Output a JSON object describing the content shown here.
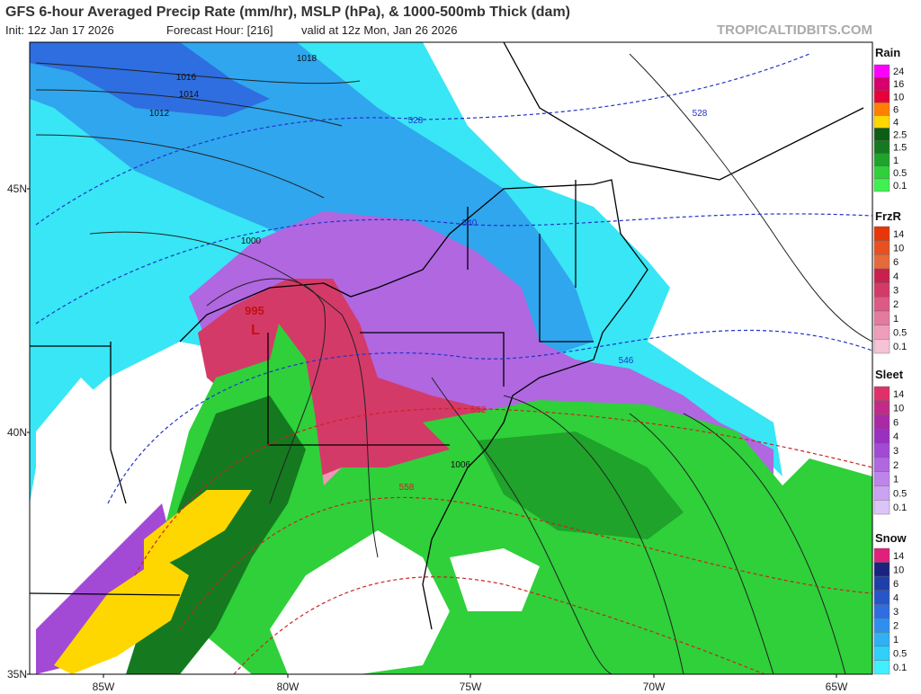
{
  "header": {
    "title": "GFS 6-hour Averaged Precip Rate (mm/hr), MSLP (hPa), & 1000-500mb Thick (dam)",
    "init": "Init: 12z Jan 17 2026",
    "forecast_hour": "Forecast Hour: [216]",
    "valid": "valid at 12z Mon, Jan 26 2026",
    "watermark": "TROPICALTIDBITS.COM"
  },
  "map": {
    "lat_labels": [
      "45N",
      "40N",
      "35N"
    ],
    "lon_labels": [
      "85W",
      "80W",
      "75W",
      "70W",
      "65W"
    ],
    "low": {
      "symbol": "L",
      "pressure": "995"
    },
    "isobar_labels": [
      "1018",
      "1016",
      "1014",
      "1012",
      "1000",
      "1006"
    ],
    "thickness_labels_blue": [
      "528",
      "528",
      "540",
      "546"
    ],
    "thickness_labels_red": [
      "552",
      "558"
    ]
  },
  "legends": [
    {
      "title": "Rain",
      "labels": [
        "24",
        "16",
        "10",
        "6",
        "4",
        "2.5",
        "1.5",
        "1",
        "0.5",
        "0.1"
      ],
      "colors": [
        "#ff00ff",
        "#d6006e",
        "#e8003a",
        "#ff7f00",
        "#ffd700",
        "#0b5e14",
        "#157a1f",
        "#1fa32b",
        "#2fd03a",
        "#40f050"
      ]
    },
    {
      "title": "FrzR",
      "labels": [
        "14",
        "10",
        "6",
        "4",
        "3",
        "2",
        "1",
        "0.5",
        "0.1"
      ],
      "colors": [
        "#e8350a",
        "#e8501f",
        "#e56a3a",
        "#c8214f",
        "#d43a68",
        "#dc5a85",
        "#e57aa0",
        "#ee9ebb",
        "#f6c2d5"
      ]
    },
    {
      "title": "Sleet",
      "labels": [
        "14",
        "10",
        "6",
        "4",
        "3",
        "2",
        "1",
        "0.5",
        "0.1"
      ],
      "colors": [
        "#e0306a",
        "#c22a8a",
        "#a82aa5",
        "#9a30c0",
        "#a24ad6",
        "#b067e0",
        "#bd85ea",
        "#cba3f2",
        "#dcc4f8"
      ]
    },
    {
      "title": "Snow",
      "labels": [
        "14",
        "10",
        "6",
        "4",
        "3",
        "2",
        "1",
        "0.5",
        "0.1"
      ],
      "colors": [
        "#e0207a",
        "#1a237e",
        "#1f3fa8",
        "#2656c8",
        "#2e6ee0",
        "#2f8ff0",
        "#30b0f5",
        "#30d0fa",
        "#40f0ff"
      ]
    }
  ]
}
